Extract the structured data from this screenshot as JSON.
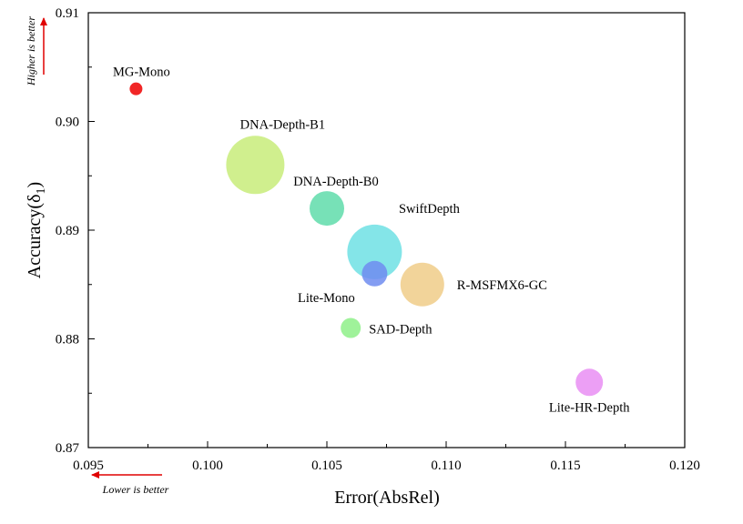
{
  "chart_data": {
    "type": "scatter",
    "title": "",
    "xlabel": "Error(AbsRel)",
    "ylabel_main": "Accuracy(δ",
    "ylabel_sub": "1",
    "ylabel_close": ")",
    "xlim": [
      0.095,
      0.12
    ],
    "ylim": [
      0.87,
      0.91
    ],
    "x_ticks": [
      "0.095",
      "0.100",
      "0.105",
      "0.110",
      "0.115",
      "0.120"
    ],
    "y_ticks": [
      "0.87",
      "0.88",
      "0.89",
      "0.90",
      "0.91"
    ],
    "grid": false,
    "annotations": {
      "higher_is_better": "Higher is better",
      "lower_is_better": "Lower is better"
    },
    "points": [
      {
        "label": "MG-Mono",
        "x": 0.097,
        "y": 0.903,
        "size": 7,
        "color": "#ee0000"
      },
      {
        "label": "DNA-Depth-B1",
        "x": 0.102,
        "y": 0.896,
        "size": 32,
        "color": "#c8ec7a"
      },
      {
        "label": "DNA-Depth-B0",
        "x": 0.105,
        "y": 0.892,
        "size": 19,
        "color": "#5fdcaa"
      },
      {
        "label": "SwiftDepth",
        "x": 0.107,
        "y": 0.888,
        "size": 30,
        "color": "#6fe0e4"
      },
      {
        "label": "Lite-Mono",
        "x": 0.107,
        "y": 0.886,
        "size": 14,
        "color": "#6f8cf0"
      },
      {
        "label": "R-MSFMX6-GC",
        "x": 0.109,
        "y": 0.885,
        "size": 24,
        "color": "#f0cc88"
      },
      {
        "label": "SAD-Depth",
        "x": 0.106,
        "y": 0.881,
        "size": 11,
        "color": "#8ef088"
      },
      {
        "label": "Lite-HR-Depth",
        "x": 0.116,
        "y": 0.876,
        "size": 15,
        "color": "#e98ef3"
      }
    ]
  }
}
